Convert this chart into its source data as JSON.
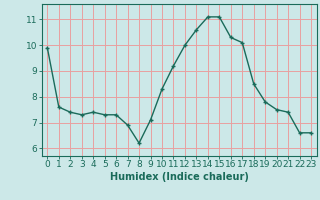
{
  "x": [
    0,
    1,
    2,
    3,
    4,
    5,
    6,
    7,
    8,
    9,
    10,
    11,
    12,
    13,
    14,
    15,
    16,
    17,
    18,
    19,
    20,
    21,
    22,
    23
  ],
  "y": [
    9.9,
    7.6,
    7.4,
    7.3,
    7.4,
    7.3,
    7.3,
    6.9,
    6.2,
    7.1,
    8.3,
    9.2,
    10.0,
    10.6,
    11.1,
    11.1,
    10.3,
    10.1,
    8.5,
    7.8,
    7.5,
    7.4,
    6.6,
    6.6
  ],
  "line_color": "#1a6b5a",
  "marker": "s",
  "marker_size": 2.5,
  "bg_color": "#cce8e8",
  "grid_color": "#e8a0a0",
  "xlabel": "Humidex (Indice chaleur)",
  "xlabel_fontsize": 7,
  "tick_fontsize": 6.5,
  "xlim": [
    -0.5,
    23.5
  ],
  "ylim": [
    5.7,
    11.6
  ],
  "yticks": [
    6,
    7,
    8,
    9,
    10,
    11
  ],
  "xticks": [
    0,
    1,
    2,
    3,
    4,
    5,
    6,
    7,
    8,
    9,
    10,
    11,
    12,
    13,
    14,
    15,
    16,
    17,
    18,
    19,
    20,
    21,
    22,
    23
  ]
}
